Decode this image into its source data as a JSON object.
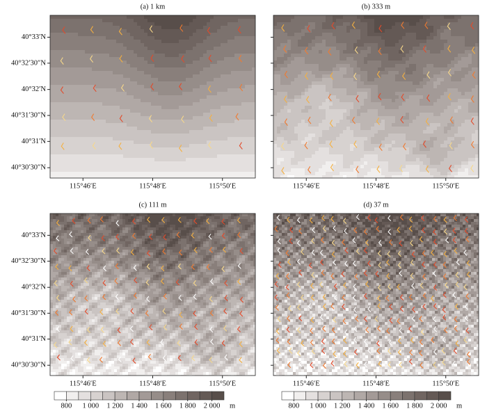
{
  "chart_data": [
    {
      "type": "contour",
      "title": "(a) 1 km",
      "xlim": [
        115.751,
        115.849
      ],
      "ylim": [
        40.505,
        40.557
      ],
      "xticks": [
        {
          "value": 115.7667,
          "label": "115°46′E"
        },
        {
          "value": 115.8,
          "label": "115°48′E"
        },
        {
          "value": 115.8333,
          "label": "115°50′E"
        }
      ],
      "yticks": [
        {
          "value": 40.5083,
          "label": "40°30′30″N"
        },
        {
          "value": 40.5167,
          "label": "40°31′N"
        },
        {
          "value": 40.525,
          "label": "40°31′30″N"
        },
        {
          "value": 40.5333,
          "label": "40°32′N"
        },
        {
          "value": 40.5417,
          "label": "40°32′30″N"
        },
        {
          "value": 40.55,
          "label": "40°33′N"
        }
      ]
    },
    {
      "type": "contour",
      "title": "(b) 333 m",
      "xlim": [
        115.751,
        115.849
      ],
      "ylim": [
        40.505,
        40.557
      ],
      "xticks": [
        {
          "value": 115.7667,
          "label": "115°46′E"
        },
        {
          "value": 115.8,
          "label": "115°48′E"
        },
        {
          "value": 115.8333,
          "label": "115°50′E"
        }
      ],
      "yticks": [
        40.5083,
        40.5167,
        40.525,
        40.5333,
        40.5417,
        40.55
      ]
    },
    {
      "type": "contour",
      "title": "(c) 111 m",
      "xlim": [
        115.751,
        115.849
      ],
      "ylim": [
        40.505,
        40.557
      ],
      "xticks": [
        {
          "value": 115.7667,
          "label": "115°46′E"
        },
        {
          "value": 115.8,
          "label": "115°48′E"
        },
        {
          "value": 115.8333,
          "label": "115°50′E"
        }
      ],
      "yticks": [
        {
          "value": 40.5083,
          "label": "40°30′30″N"
        },
        {
          "value": 40.5167,
          "label": "40°31′N"
        },
        {
          "value": 40.525,
          "label": "40°31′30″N"
        },
        {
          "value": 40.5333,
          "label": "40°32′N"
        },
        {
          "value": 40.5417,
          "label": "40°32′30″N"
        },
        {
          "value": 40.55,
          "label": "40°33′N"
        }
      ]
    },
    {
      "type": "contour",
      "title": "(d) 37 m",
      "xlim": [
        115.751,
        115.849
      ],
      "ylim": [
        40.505,
        40.557
      ],
      "xticks": [
        {
          "value": 115.7667,
          "label": "115°46′E"
        },
        {
          "value": 115.8,
          "label": "115°48′E"
        },
        {
          "value": 115.8333,
          "label": "115°50′E"
        }
      ],
      "yticks": [
        40.5083,
        40.5167,
        40.525,
        40.5333,
        40.5417,
        40.55
      ]
    },
    {
      "type": "colorbar",
      "clim": [
        700,
        2100
      ],
      "unit": "m",
      "colors": [
        "#ffffff",
        "#f1efee",
        "#e4e0df",
        "#d7d2d0",
        "#cac4c2",
        "#bdb6b3",
        "#b0a8a5",
        "#a39a97",
        "#968d89",
        "#897f7b",
        "#7c726e",
        "#706561",
        "#645955",
        "#584e4a"
      ],
      "ticks": [
        800,
        {
          "value": 1000,
          "label": "1 000"
        },
        {
          "value": 1200,
          "label": "1 200"
        },
        {
          "value": 1400,
          "label": "1 400"
        },
        {
          "value": 1600,
          "label": "1 600"
        },
        {
          "value": 1800,
          "label": "1 800"
        },
        {
          "value": 2000,
          "label": "2 000"
        }
      ]
    },
    {
      "type": "colorbar",
      "clim": [
        700,
        2100
      ],
      "unit": "m",
      "colors": [
        "#ffffff",
        "#f1efee",
        "#e4e0df",
        "#d7d2d0",
        "#cac4c2",
        "#bdb6b3",
        "#b0a8a5",
        "#a39a97",
        "#968d89",
        "#897f7b",
        "#7c726e",
        "#706561",
        "#645955",
        "#584e4a"
      ],
      "ticks": [
        800,
        {
          "value": 1000,
          "label": "1 000"
        },
        {
          "value": 1200,
          "label": "1 200"
        },
        {
          "value": 1400,
          "label": "1 400"
        },
        {
          "value": 1600,
          "label": "1 600"
        },
        {
          "value": 1800,
          "label": "1 800"
        },
        {
          "value": 2000,
          "label": "2 000"
        }
      ]
    }
  ]
}
